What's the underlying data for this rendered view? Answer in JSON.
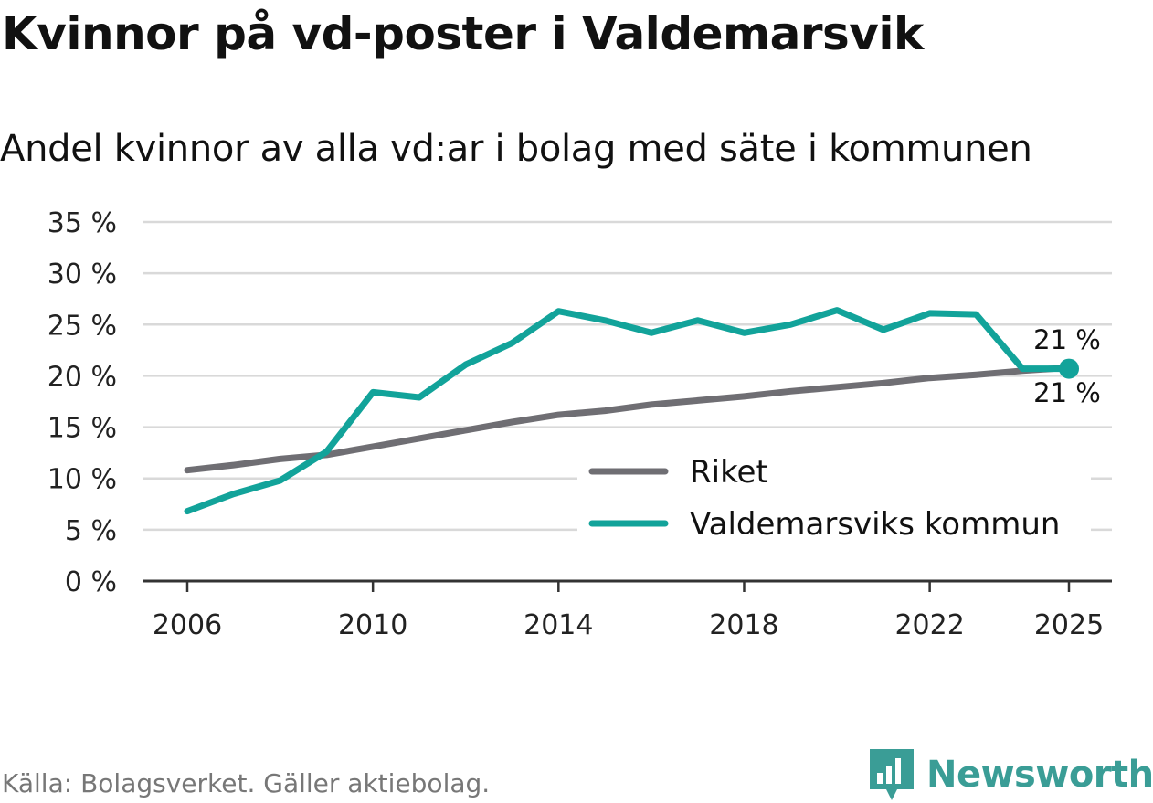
{
  "title": "Kvinnor på vd-poster i Valdemarsvik",
  "subtitle": "Andel kvinnor av alla vd:ar i bolag med säte i kommunen",
  "source": "Källa: Bolagsverket. Gäller aktiebolag.",
  "brand": "Newsworthy",
  "colors": {
    "riket": "#6f6e73",
    "kommun": "#12a39a",
    "grid": "#d9d9d9",
    "axis": "#333333",
    "brand": "#3a9d96"
  },
  "chart_data": {
    "type": "line",
    "title": "Kvinnor på vd-poster i Valdemarsvik",
    "subtitle": "Andel kvinnor av alla vd:ar i bolag med säte i kommunen",
    "xlabel": "",
    "ylabel": "",
    "ylim": [
      0,
      35
    ],
    "xlim": [
      2006,
      2025
    ],
    "x_ticks": [
      2006,
      2010,
      2014,
      2018,
      2022,
      2025
    ],
    "x_tick_labels": [
      "2006",
      "2010",
      "2014",
      "2018",
      "2022",
      "2025"
    ],
    "y_ticks": [
      0,
      5,
      10,
      15,
      20,
      25,
      30,
      35
    ],
    "y_tick_labels": [
      "0 %",
      "5 %",
      "10 %",
      "15 %",
      "20 %",
      "25 %",
      "30 %",
      "35 %"
    ],
    "grid": true,
    "legend_position": "bottom-right",
    "x": [
      2006,
      2007,
      2008,
      2009,
      2010,
      2011,
      2012,
      2013,
      2014,
      2015,
      2016,
      2017,
      2018,
      2019,
      2020,
      2021,
      2022,
      2023,
      2024,
      2025
    ],
    "series": [
      {
        "name": "Riket",
        "key": "riket",
        "values": [
          10.8,
          11.3,
          11.9,
          12.3,
          13.1,
          13.9,
          14.7,
          15.5,
          16.2,
          16.6,
          17.2,
          17.6,
          18.0,
          18.5,
          18.9,
          19.3,
          19.8,
          20.1,
          20.5,
          20.8
        ],
        "end_label": "21 %"
      },
      {
        "name": "Valdemarsviks kommun",
        "key": "kommun",
        "values": [
          6.8,
          8.5,
          9.8,
          12.6,
          18.4,
          17.9,
          21.1,
          23.2,
          26.3,
          25.4,
          24.2,
          25.4,
          24.2,
          25.0,
          26.4,
          24.5,
          26.1,
          26.0,
          20.7,
          20.7
        ],
        "end_label": "21 %"
      }
    ]
  }
}
